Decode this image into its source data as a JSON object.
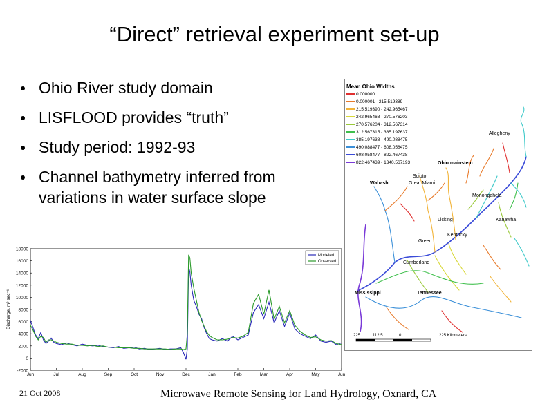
{
  "slide": {
    "title": "“Direct” retrieval experiment set-up",
    "bullets": [
      "Ohio River study domain",
      "LISFLOOD provides “truth”",
      "Study period: 1992-93",
      "Channel bathymetry inferred from variations in water surface slope"
    ],
    "footer_left": "21 Oct 2008",
    "footer_right": "Microwave Remote Sensing for Land Hydrology, Oxnard, CA"
  },
  "map": {
    "legend_title": "Mean Ohio Widths",
    "legend": [
      {
        "label": "0.000000",
        "color": "#e03030"
      },
      {
        "label": "0.000001 - 215.519389",
        "color": "#e87a2a"
      },
      {
        "label": "215.519390 - 242.965467",
        "color": "#f2b43a"
      },
      {
        "label": "242.965468 - 270.576203",
        "color": "#d8d838"
      },
      {
        "label": "270.576204 - 312.567314",
        "color": "#9ac93a"
      },
      {
        "label": "312.567315 - 385.197637",
        "color": "#3fbf4c"
      },
      {
        "label": "385.197638 - 490.088475",
        "color": "#3dc9c9"
      },
      {
        "label": "490.088477 - 608.058475",
        "color": "#3a8fd8"
      },
      {
        "label": "608.058477 - 822.467438",
        "color": "#3a4bd8"
      },
      {
        "label": "822.467439 - 1340.567193",
        "color": "#7a3ad8"
      }
    ],
    "labels": {
      "allegheny": "Allegheny",
      "ohio_mainstem": "Ohio mainstem",
      "scioto": "Scioto",
      "wabash": "Wabash",
      "great_miami": "Great Miami",
      "monongahela": "Monongahela",
      "licking": "Licking",
      "kanawha": "Kanawha",
      "kentucky": "Kentucky",
      "green": "Green",
      "cumberland": "Cumberland",
      "mississippi": "Mississippi",
      "tennessee": "Tennessee"
    },
    "scale_ticks": [
      "225",
      "112.5",
      "0",
      "225 Kilometers"
    ]
  },
  "chart_data": {
    "type": "line",
    "ylabel": "Discharge, m³ sec⁻¹",
    "ylim": [
      -2000,
      18000
    ],
    "yticks": [
      "18000",
      "16000",
      "14000",
      "12000",
      "10000",
      "8000",
      "6000",
      "4000",
      "2000",
      "0",
      "-2000"
    ],
    "xticks": [
      "Jun",
      "Jul",
      "Aug",
      "Sep",
      "Oct",
      "Nov",
      "Dec",
      "Jan",
      "Feb",
      "Mar",
      "Apr",
      "May",
      "Jun"
    ],
    "legend": [
      "Modeled",
      "Observed"
    ],
    "series": [
      {
        "name": "Modeled",
        "color": "#2a2ab8",
        "x": [
          0,
          0.1,
          0.2,
          0.3,
          0.4,
          0.5,
          0.6,
          0.7,
          0.8,
          0.9,
          1.0,
          1.2,
          1.4,
          1.6,
          1.8,
          2.0,
          2.2,
          2.4,
          2.6,
          2.8,
          3.0,
          3.2,
          3.4,
          3.6,
          3.8,
          4.0,
          4.2,
          4.4,
          4.6,
          4.8,
          5.0,
          5.2,
          5.4,
          5.6,
          5.8,
          5.9,
          6.0,
          6.05,
          6.1,
          6.15,
          6.2,
          6.3,
          6.4,
          6.5,
          6.6,
          6.7,
          6.8,
          6.9,
          7.0,
          7.2,
          7.4,
          7.6,
          7.8,
          8.0,
          8.2,
          8.4,
          8.6,
          8.8,
          9.0,
          9.2,
          9.4,
          9.6,
          9.8,
          10.0,
          10.2,
          10.4,
          10.6,
          10.8,
          11.0,
          11.2,
          11.4,
          11.6,
          11.8,
          12.0
        ],
        "y": [
          6200,
          5000,
          3800,
          3200,
          4200,
          3000,
          2400,
          2800,
          3300,
          2600,
          2400,
          2200,
          2500,
          2200,
          2000,
          2300,
          2100,
          2000,
          2100,
          1900,
          1800,
          1700,
          1900,
          1600,
          1700,
          1800,
          1500,
          1600,
          1400,
          1500,
          1600,
          1400,
          1500,
          1500,
          1700,
          900,
          -200,
          1500,
          15000,
          14200,
          12000,
          9500,
          8500,
          7200,
          6500,
          5000,
          4000,
          3200,
          3000,
          2800,
          3200,
          2800,
          3600,
          3000,
          3400,
          3800,
          7500,
          8800,
          6500,
          9200,
          5800,
          7800,
          5200,
          7400,
          4800,
          4000,
          3600,
          3200,
          3800,
          2800,
          2600,
          2800,
          2200,
          2500
        ],
        "values_note_removed": true
      },
      {
        "name": "Observed",
        "color": "#2a9a2a",
        "x": [
          0,
          0.1,
          0.2,
          0.3,
          0.4,
          0.5,
          0.6,
          0.7,
          0.8,
          0.9,
          1.0,
          1.2,
          1.4,
          1.6,
          1.8,
          2.0,
          2.2,
          2.4,
          2.6,
          2.8,
          3.0,
          3.2,
          3.4,
          3.6,
          3.8,
          4.0,
          4.2,
          4.4,
          4.6,
          4.8,
          5.0,
          5.2,
          5.4,
          5.6,
          5.8,
          5.9,
          6.0,
          6.05,
          6.1,
          6.15,
          6.2,
          6.3,
          6.4,
          6.5,
          6.6,
          6.7,
          6.8,
          6.9,
          7.0,
          7.2,
          7.4,
          7.6,
          7.8,
          8.0,
          8.2,
          8.4,
          8.6,
          8.8,
          9.0,
          9.2,
          9.4,
          9.6,
          9.8,
          10.0,
          10.2,
          10.4,
          10.6,
          10.8,
          11.0,
          11.2,
          11.4,
          11.6,
          11.8,
          12.0
        ],
        "y": [
          5400,
          4600,
          3600,
          3000,
          3600,
          3400,
          2600,
          3000,
          3000,
          2800,
          2600,
          2400,
          2300,
          2300,
          2100,
          2100,
          2000,
          2100,
          1900,
          2000,
          1800,
          1800,
          1700,
          1700,
          1700,
          1600,
          1600,
          1500,
          1500,
          1500,
          1500,
          1500,
          1400,
          1500,
          1500,
          1400,
          1500,
          4000,
          17000,
          16500,
          14000,
          11500,
          9500,
          7500,
          6200,
          5200,
          4300,
          3700,
          3400,
          3000,
          3000,
          3100,
          3400,
          3300,
          3600,
          4200,
          9000,
          10500,
          7200,
          11200,
          6400,
          8500,
          5800,
          7800,
          5400,
          4400,
          3800,
          3400,
          3500,
          3000,
          2800,
          2900,
          2400,
          2200
        ]
      }
    ]
  }
}
